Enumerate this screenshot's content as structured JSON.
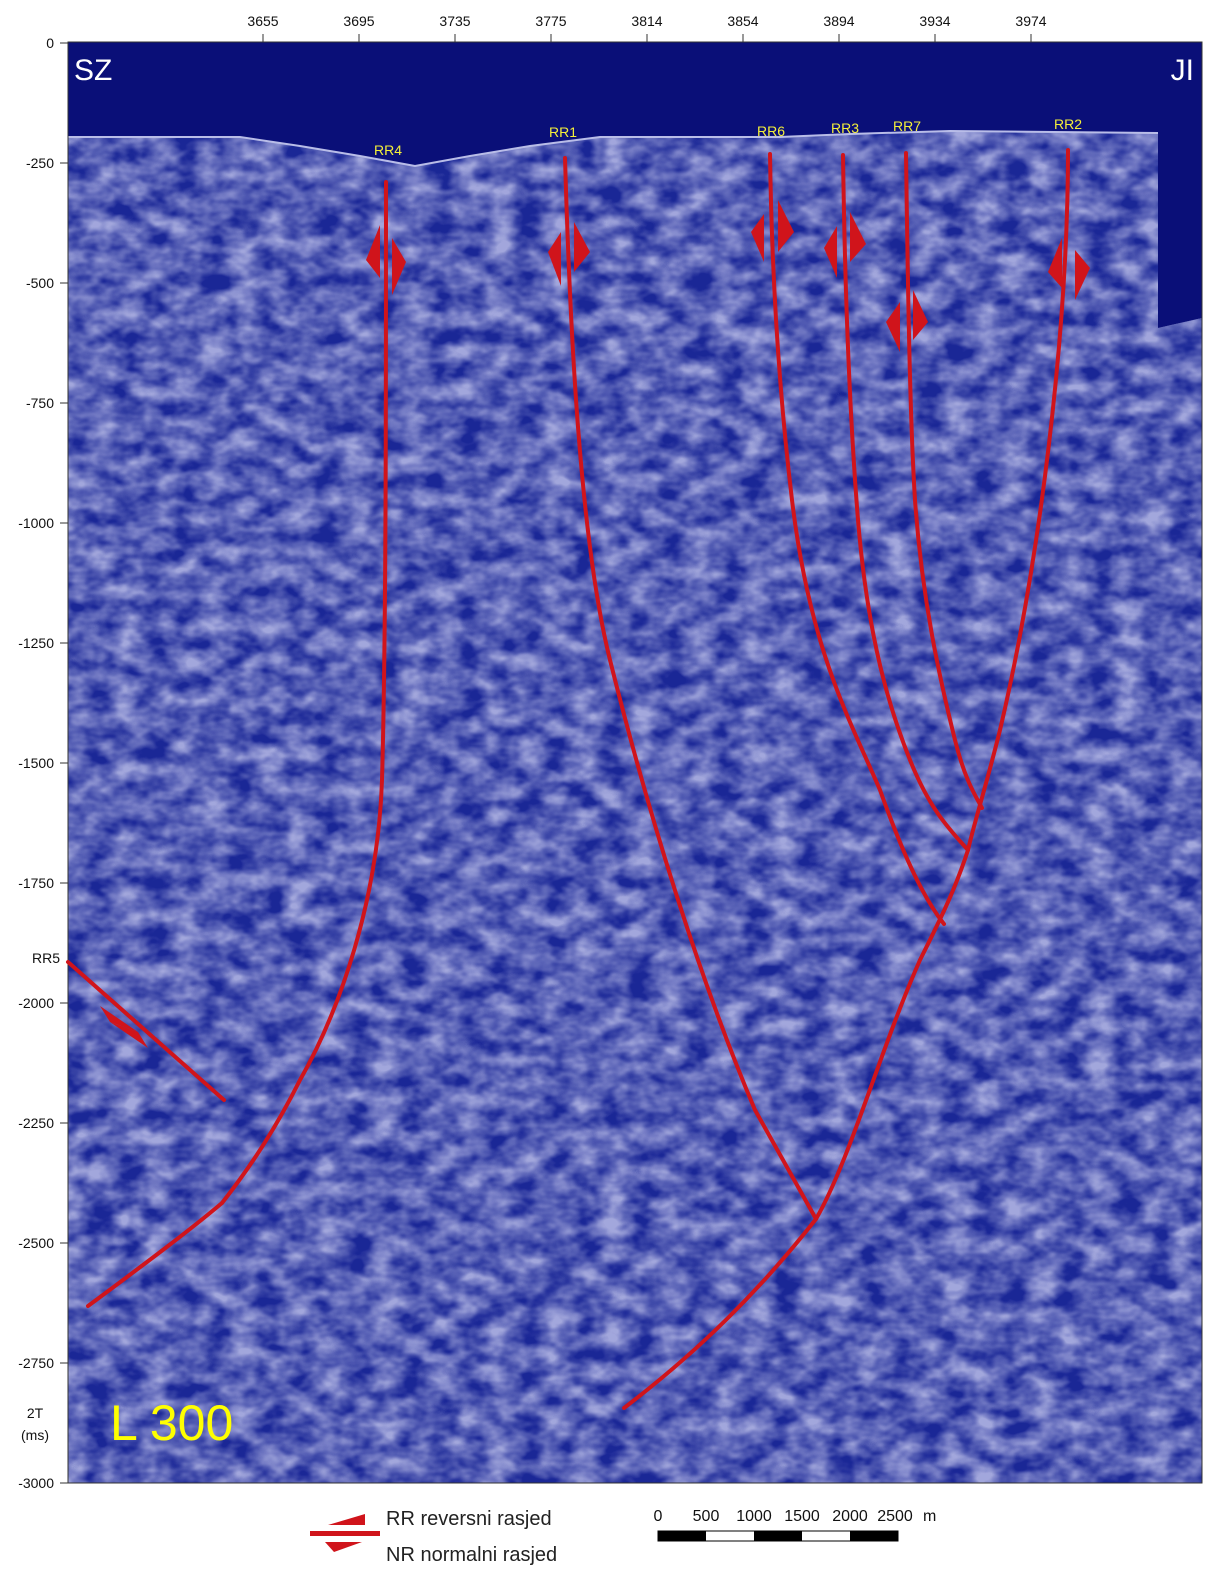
{
  "section": {
    "line_name": "L 300",
    "left_direction": "SZ",
    "right_direction": "JI",
    "colors": {
      "water": "#0a0f78",
      "seismic_dark": "#1b2796",
      "seismic_light": "#c7c9ee",
      "fault": "#d0141b",
      "label_yellow": "#ffff00"
    }
  },
  "top_axis": {
    "ticks": [
      "3655",
      "3695",
      "3735",
      "3775",
      "3814",
      "3854",
      "3894",
      "3934",
      "3974"
    ]
  },
  "left_axis": {
    "ticks": [
      "0",
      "-250",
      "-500",
      "-750",
      "-1000",
      "-1250",
      "-1500",
      "-1750",
      "-2000",
      "-2250",
      "-2500",
      "-2750",
      "-3000"
    ],
    "unit_line1": "2T",
    "unit_line2": "(ms)"
  },
  "faults": [
    {
      "id": "RR4",
      "label": "RR4"
    },
    {
      "id": "RR1",
      "label": "RR1"
    },
    {
      "id": "RR6",
      "label": "RR6"
    },
    {
      "id": "RR3",
      "label": "RR3"
    },
    {
      "id": "RR7",
      "label": "RR7"
    },
    {
      "id": "RR2",
      "label": "RR2"
    },
    {
      "id": "RR5",
      "label": "RR5"
    }
  ],
  "legend": {
    "reverse_fault": "RR reversni rasjed",
    "normal_fault": "NR normalni rasjed"
  },
  "scale_bar": {
    "labels": [
      "0",
      "500",
      "1000",
      "1500",
      "2000",
      "2500"
    ],
    "unit": "m"
  }
}
